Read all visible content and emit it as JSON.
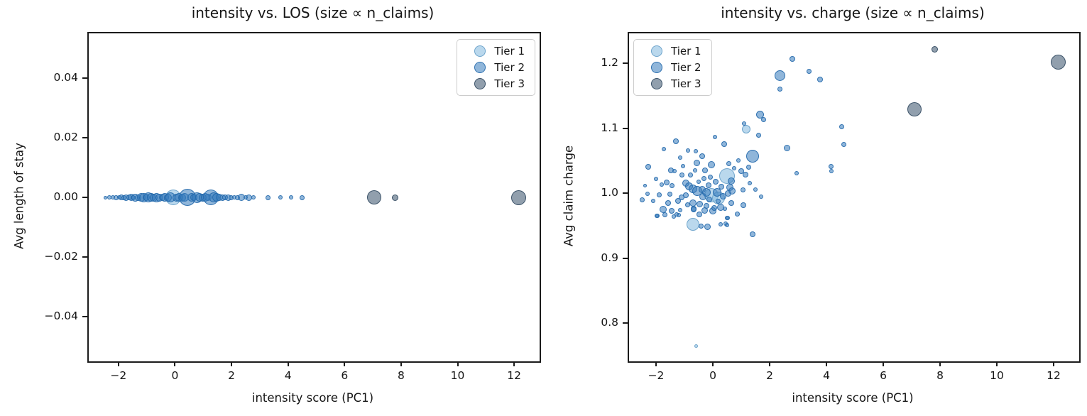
{
  "figure": {
    "background": "#ffffff"
  },
  "tiers": {
    "tier1": {
      "label": "Tier 1",
      "fill": "rgba(140,190,225,0.60)",
      "edge": "rgba(108,162,202,0.95)"
    },
    "tier2": {
      "label": "Tier 2",
      "fill": "rgba(52,122,188,0.55)",
      "edge": "rgba(38,106,172,0.90)"
    },
    "tier3": {
      "label": "Tier 3",
      "fill": "rgba(78,100,122,0.62)",
      "edge": "rgba(55,78,100,0.95)"
    }
  },
  "chart_data": [
    {
      "type": "scatter",
      "title": "intensity vs. LOS (size ∝ n_claims)",
      "xlabel": "intensity score (PC1)",
      "ylabel": "Avg length of stay",
      "xlim": [
        -3.05,
        12.9
      ],
      "ylim": [
        -0.055,
        0.055
      ],
      "grid": false,
      "xticks": [
        {
          "v": -2,
          "label": "−2"
        },
        {
          "v": 0,
          "label": "0"
        },
        {
          "v": 2,
          "label": "2"
        },
        {
          "v": 4,
          "label": "4"
        },
        {
          "v": 6,
          "label": "6"
        },
        {
          "v": 8,
          "label": "8"
        },
        {
          "v": 10,
          "label": "10"
        },
        {
          "v": 12,
          "label": "12"
        }
      ],
      "yticks": [
        {
          "v": -0.04,
          "label": "−0.04"
        },
        {
          "v": -0.02,
          "label": "−0.02"
        },
        {
          "v": 0.0,
          "label": "0.00"
        },
        {
          "v": 0.02,
          "label": "0.02"
        },
        {
          "v": 0.04,
          "label": "0.04"
        }
      ],
      "legend": {
        "position": "upper-right",
        "entries": [
          "Tier 1",
          "Tier 2",
          "Tier 3"
        ]
      },
      "series": [
        {
          "name": "Tier 1",
          "tier": "tier1",
          "points": [
            [
              -0.05,
              0,
              11
            ]
          ]
        },
        {
          "name": "Tier 2",
          "tier": "tier2",
          "points": [
            [
              -2.45,
              0,
              2.5
            ],
            [
              -2.32,
              0,
              3
            ],
            [
              -2.2,
              0,
              3
            ],
            [
              -2.08,
              0,
              3.5
            ],
            [
              -1.98,
              0,
              3
            ],
            [
              -1.9,
              0,
              4
            ],
            [
              -1.8,
              0,
              3.5
            ],
            [
              -1.72,
              0,
              4.5
            ],
            [
              -1.62,
              0,
              4
            ],
            [
              -1.55,
              0,
              5
            ],
            [
              -1.47,
              0,
              3.5
            ],
            [
              -1.4,
              0,
              5.5
            ],
            [
              -1.3,
              0,
              4.5
            ],
            [
              -1.2,
              0,
              6
            ],
            [
              -1.1,
              0,
              6.5
            ],
            [
              -1.02,
              0,
              5
            ],
            [
              -0.93,
              0,
              7
            ],
            [
              -0.85,
              0,
              6
            ],
            [
              -0.75,
              0,
              5.5
            ],
            [
              -0.65,
              0,
              6.5
            ],
            [
              -0.55,
              0,
              5.5
            ],
            [
              -0.45,
              0,
              5
            ],
            [
              -0.35,
              0,
              6
            ],
            [
              -0.25,
              0,
              5.5
            ],
            [
              -0.15,
              0,
              7
            ],
            [
              0.05,
              0,
              5.5
            ],
            [
              0.15,
              0,
              6
            ],
            [
              0.25,
              0,
              5.5
            ],
            [
              0.35,
              0,
              6
            ],
            [
              0.45,
              0,
              12
            ],
            [
              0.58,
              0,
              6
            ],
            [
              0.68,
              0,
              5
            ],
            [
              0.78,
              0,
              7.5
            ],
            [
              0.88,
              0,
              6
            ],
            [
              0.98,
              0,
              5.5
            ],
            [
              1.08,
              0,
              6
            ],
            [
              1.18,
              0,
              5
            ],
            [
              1.28,
              0,
              11
            ],
            [
              1.38,
              0,
              7
            ],
            [
              1.48,
              0,
              6
            ],
            [
              1.58,
              0,
              5
            ],
            [
              1.68,
              0,
              4.5
            ],
            [
              1.78,
              0,
              4
            ],
            [
              1.88,
              0,
              4.5
            ],
            [
              1.98,
              0,
              3.5
            ],
            [
              2.1,
              0,
              3
            ],
            [
              2.2,
              0,
              3.5
            ],
            [
              2.35,
              0,
              5
            ],
            [
              2.5,
              0,
              3
            ],
            [
              2.62,
              0,
              4.5
            ],
            [
              2.78,
              0,
              3
            ],
            [
              3.3,
              0,
              3.5
            ],
            [
              3.72,
              0,
              3
            ],
            [
              4.1,
              0,
              3
            ],
            [
              4.5,
              0,
              3.5
            ]
          ]
        },
        {
          "name": "Tier 3",
          "tier": "tier3",
          "points": [
            [
              7.05,
              0,
              10
            ],
            [
              7.8,
              0,
              4.5
            ],
            [
              12.15,
              0,
              10.5
            ]
          ]
        }
      ]
    },
    {
      "type": "scatter",
      "title": "intensity vs. charge (size ∝ n_claims)",
      "xlabel": "intensity score (PC1)",
      "ylabel": "Avg claim charge",
      "xlim": [
        -2.95,
        12.9
      ],
      "ylim": [
        0.741,
        1.246
      ],
      "grid": false,
      "xticks": [
        {
          "v": -2,
          "label": "−2"
        },
        {
          "v": 0,
          "label": "0"
        },
        {
          "v": 2,
          "label": "2"
        },
        {
          "v": 4,
          "label": "4"
        },
        {
          "v": 6,
          "label": "6"
        },
        {
          "v": 8,
          "label": "8"
        },
        {
          "v": 10,
          "label": "10"
        },
        {
          "v": 12,
          "label": "12"
        }
      ],
      "yticks": [
        {
          "v": 0.8,
          "label": "0.8"
        },
        {
          "v": 0.9,
          "label": "0.9"
        },
        {
          "v": 1.0,
          "label": "1.0"
        },
        {
          "v": 1.1,
          "label": "1.1"
        },
        {
          "v": 1.2,
          "label": "1.2"
        }
      ],
      "legend": {
        "position": "upper-left",
        "entries": [
          "Tier 1",
          "Tier 2",
          "Tier 3"
        ]
      },
      "series": [
        {
          "name": "Tier 1",
          "tier": "tier1",
          "points": [
            [
              -0.05,
              0.997,
              10
            ],
            [
              -0.7,
              0.952,
              9
            ],
            [
              0.2,
              0.992,
              9
            ],
            [
              0.5,
              1.026,
              11
            ],
            [
              1.17,
              1.098,
              6
            ],
            [
              -0.58,
              0.765,
              2.5
            ]
          ]
        },
        {
          "name": "Tier 2",
          "tier": "tier2",
          "points": [
            [
              2.35,
              1.181,
              7.5
            ],
            [
              2.8,
              1.207,
              4
            ],
            [
              3.38,
              1.188,
              3.5
            ],
            [
              3.78,
              1.175,
              4
            ],
            [
              2.35,
              1.16,
              3.5
            ],
            [
              1.65,
              1.121,
              5.5
            ],
            [
              1.78,
              1.113,
              3.5
            ],
            [
              1.1,
              1.107,
              3
            ],
            [
              4.53,
              1.102,
              3.5
            ],
            [
              4.6,
              1.075,
              3.5
            ],
            [
              4.15,
              1.041,
              3.5
            ],
            [
              4.17,
              1.034,
              3
            ],
            [
              2.95,
              1.031,
              3
            ],
            [
              1.4,
              1.057,
              9
            ],
            [
              2.6,
              1.069,
              4.5
            ],
            [
              1.6,
              1.089,
              3.5
            ],
            [
              0.4,
              1.076,
              4
            ],
            [
              0.08,
              1.086,
              3
            ],
            [
              1.0,
              1.034,
              4
            ],
            [
              1.15,
              1.028,
              4
            ],
            [
              0.65,
              1.019,
              5
            ],
            [
              0.6,
              1.009,
              5
            ],
            [
              0.68,
              1.003,
              5
            ],
            [
              0.53,
              1.0,
              4.5
            ],
            [
              1.08,
              0.981,
              4
            ],
            [
              0.43,
              0.976,
              3
            ],
            [
              -1.3,
              1.08,
              4
            ],
            [
              -1.73,
              1.068,
              3
            ],
            [
              -0.88,
              1.066,
              3
            ],
            [
              -2.28,
              1.04,
              4
            ],
            [
              -0.38,
              1.057,
              4
            ],
            [
              -0.57,
              1.046,
              4.5
            ],
            [
              -0.05,
              1.044,
              5
            ],
            [
              -1.47,
              1.035,
              4
            ],
            [
              -1.35,
              1.034,
              3
            ],
            [
              -1.1,
              1.028,
              3.5
            ],
            [
              -2.0,
              1.022,
              3
            ],
            [
              -1.63,
              1.016,
              4
            ],
            [
              -1.8,
              1.013,
              3
            ],
            [
              -1.43,
              1.012,
              3.5
            ],
            [
              -0.95,
              1.015,
              5
            ],
            [
              -0.85,
              1.01,
              5.5
            ],
            [
              -0.7,
              1.007,
              6
            ],
            [
              -0.55,
              1.003,
              7
            ],
            [
              -0.37,
              1.006,
              5
            ],
            [
              -0.22,
              1.001,
              6
            ],
            [
              0.15,
              1.001,
              6
            ],
            [
              -0.95,
              0.997,
              4
            ],
            [
              -1.1,
              0.993,
              4
            ],
            [
              -1.23,
              0.988,
              4
            ],
            [
              -1.88,
              0.997,
              3.5
            ],
            [
              -2.3,
              0.999,
              3
            ],
            [
              -2.48,
              0.99,
              3.5
            ],
            [
              -1.58,
              0.985,
              4
            ],
            [
              -0.7,
              0.985,
              5
            ],
            [
              -0.47,
              0.983,
              4.5
            ],
            [
              -0.23,
              0.98,
              4
            ],
            [
              -0.67,
              0.976,
              4
            ],
            [
              -1.45,
              0.973,
              4
            ],
            [
              -1.68,
              0.967,
              3.5
            ],
            [
              -1.95,
              0.965,
              3
            ],
            [
              -0.47,
              0.967,
              4
            ],
            [
              0.0,
              0.973,
              5
            ],
            [
              0.28,
              0.978,
              5
            ],
            [
              -1.75,
              0.975,
              5
            ],
            [
              -1.15,
              0.974,
              3
            ],
            [
              -0.68,
              0.975,
              4
            ],
            [
              -1.97,
              0.965,
              3
            ],
            [
              -1.38,
              0.964,
              3
            ],
            [
              -1.28,
              0.967,
              3
            ],
            [
              -1.2,
              0.966,
              3
            ],
            [
              -0.3,
              0.973,
              4.5
            ],
            [
              0.05,
              0.977,
              4
            ],
            [
              0.45,
              0.953,
              3
            ],
            [
              0.5,
              0.962,
              3
            ],
            [
              -0.42,
              0.949,
              3.5
            ],
            [
              -0.2,
              0.948,
              4.5
            ],
            [
              0.28,
              0.952,
              3
            ],
            [
              0.5,
              0.951,
              3
            ],
            [
              0.53,
              0.962,
              3
            ],
            [
              1.4,
              0.937,
              4
            ],
            [
              -0.15,
              1.012,
              4
            ],
            [
              -0.32,
              1.022,
              3.5
            ],
            [
              -0.5,
              1.018,
              3
            ],
            [
              -0.78,
              1.028,
              3.5
            ],
            [
              -1.05,
              1.042,
              3
            ],
            [
              -0.62,
              1.035,
              3
            ],
            [
              -0.28,
              1.035,
              4
            ],
            [
              -0.08,
              1.025,
              3.5
            ],
            [
              0.1,
              1.018,
              4
            ],
            [
              0.3,
              1.01,
              4
            ],
            [
              0.35,
              0.995,
              4.5
            ],
            [
              0.18,
              0.988,
              3.5
            ],
            [
              -0.12,
              0.99,
              4
            ],
            [
              -0.35,
              0.995,
              5
            ],
            [
              -0.9,
              0.982,
              3.5
            ],
            [
              -1.52,
              0.998,
              3.5
            ],
            [
              -2.1,
              0.988,
              3
            ],
            [
              -2.38,
              1.012,
              2.5
            ],
            [
              -1.15,
              1.055,
              3
            ],
            [
              -0.6,
              1.065,
              3
            ],
            [
              0.55,
              1.045,
              3.5
            ],
            [
              0.75,
              1.038,
              3
            ],
            [
              0.9,
              1.05,
              3
            ],
            [
              1.25,
              1.04,
              3.5
            ],
            [
              0.85,
              0.968,
              3.5
            ],
            [
              0.65,
              0.985,
              4
            ],
            [
              1.05,
              1.005,
              3.5
            ],
            [
              1.3,
              1.015,
              3
            ],
            [
              1.5,
              1.005,
              3
            ],
            [
              1.7,
              0.995,
              3
            ]
          ]
        },
        {
          "name": "Tier 3",
          "tier": "tier3",
          "points": [
            [
              7.1,
              1.129,
              10
            ],
            [
              7.8,
              1.221,
              4.5
            ],
            [
              12.15,
              1.202,
              10.5
            ]
          ]
        }
      ]
    }
  ]
}
